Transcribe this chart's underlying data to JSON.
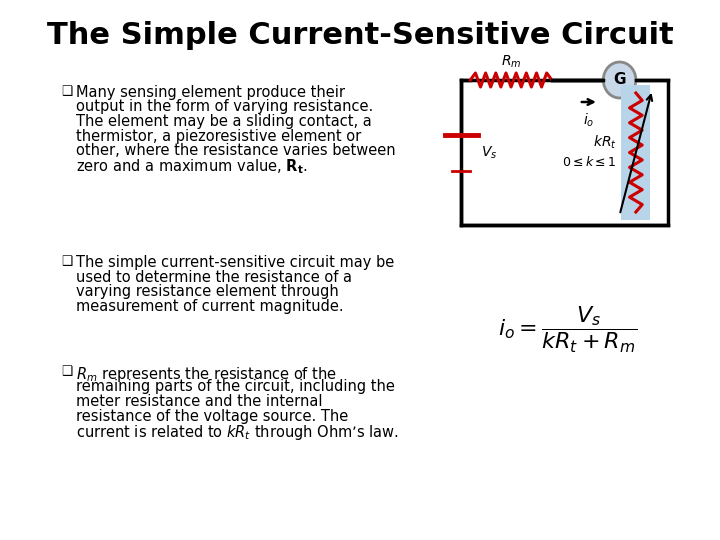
{
  "title": "The Simple Current-Sensitive Circuit",
  "title_fontsize": 22,
  "title_fontweight": "bold",
  "bg_color": "#ffffff",
  "bullet1_text": [
    "Many sensing element produce their",
    "output in the form of varying resistance.",
    "The element may be a sliding contact, a",
    "thermistor, a piezoresistive element or",
    "other, where the resistance varies between",
    "zero and a maximum value, $\\mathbf{R_t}$."
  ],
  "bullet2_text": [
    "The simple current-sensitive circuit may be",
    "used to determine the resistance of a",
    "varying resistance element through",
    "measurement of current magnitude."
  ],
  "bullet3_text": [
    "$R_m$ represents the resistance of the",
    "remaining parts of the circuit, including the",
    "meter resistance and the internal",
    "resistance of the voltage source. The",
    "current is related to $kR_t$ through Ohm’s law."
  ],
  "formula": "$i_o = \\dfrac{V_s}{kR_t + R_m}$",
  "text_color": "#000000",
  "text_fontsize": 10.5,
  "circuit_color": "#000000",
  "resistor_color": "#cc0000",
  "variable_resistor_bg": "#b8d4e8"
}
